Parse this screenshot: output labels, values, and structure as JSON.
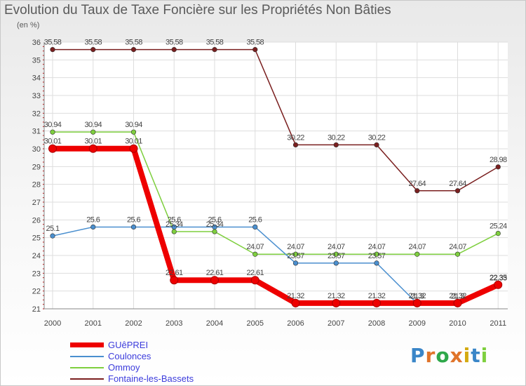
{
  "title": "Evolution du Taux de Taxe Foncière sur les Propriétés Non Bâties",
  "subtitle": "(en %)",
  "brand": "Proxiti",
  "chart_data": {
    "type": "line",
    "x": [
      "2000",
      "2001",
      "2002",
      "2003",
      "2004",
      "2005",
      "2006",
      "2007",
      "2008",
      "2009",
      "2010",
      "2011"
    ],
    "ylim": [
      21,
      36
    ],
    "yticks": [
      "21",
      "22",
      "23",
      "24",
      "25",
      "26",
      "27",
      "28",
      "29",
      "30",
      "31",
      "32",
      "33",
      "34",
      "35",
      "36"
    ],
    "grid": true,
    "legend_position": "bottom-left",
    "series": [
      {
        "name": "GUêPREI",
        "color": "#ee0000",
        "values": [
          30.01,
          30.01,
          30.01,
          22.61,
          22.61,
          22.61,
          21.32,
          21.32,
          21.32,
          21.32,
          21.32,
          22.35
        ],
        "labels": [
          "30.01",
          "30.01",
          "30.01",
          "22.61",
          "22.61",
          "22.61",
          "21.32",
          "21.32",
          "21.32",
          "21.32",
          "21.32",
          "22.35"
        ]
      },
      {
        "name": "Coulonces",
        "color": "#4a8fcf",
        "values": [
          25.1,
          25.6,
          25.6,
          25.6,
          25.6,
          25.6,
          23.57,
          23.57,
          23.57,
          21.3,
          21.3,
          22.33
        ],
        "labels": [
          "25.1",
          "25.6",
          "25.6",
          "25.6",
          "25.6",
          "25.6",
          "23.57",
          "23.57",
          "23.57",
          "21.3",
          "21.3",
          "22.33"
        ]
      },
      {
        "name": "Ommoy",
        "color": "#7ecf3e",
        "values": [
          30.94,
          30.94,
          30.94,
          25.34,
          25.34,
          24.07,
          24.07,
          24.07,
          24.07,
          24.07,
          24.07,
          25.24
        ],
        "labels": [
          "30.94",
          "30.94",
          "30.94",
          "25.34",
          "25.34",
          "24.07",
          "24.07",
          "24.07",
          "24.07",
          "24.07",
          "24.07",
          "25.24"
        ]
      },
      {
        "name": "Fontaine-les-Bassets",
        "color": "#7a1f1f",
        "values": [
          35.58,
          35.58,
          35.58,
          35.58,
          35.58,
          35.58,
          30.22,
          30.22,
          30.22,
          27.64,
          27.64,
          28.98
        ],
        "labels": [
          "35.58",
          "35.58",
          "35.58",
          "35.58",
          "35.58",
          "35.58",
          "30.22",
          "30.22",
          "30.22",
          "27.64",
          "27.64",
          "28.98"
        ]
      }
    ]
  }
}
